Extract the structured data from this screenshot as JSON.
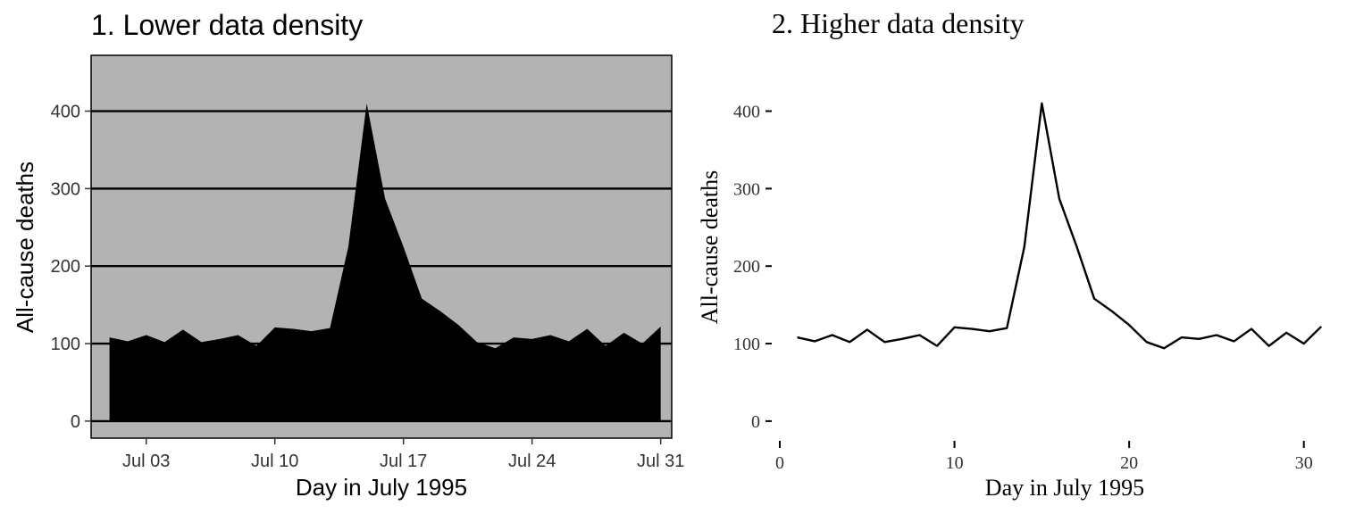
{
  "chart_data": [
    {
      "type": "area",
      "title": "1. Lower data density",
      "xlabel": "Day in July 1995",
      "ylabel": "All-cause deaths",
      "x": [
        1,
        2,
        3,
        4,
        5,
        6,
        7,
        8,
        9,
        10,
        11,
        12,
        13,
        14,
        15,
        16,
        17,
        18,
        19,
        20,
        21,
        22,
        23,
        24,
        25,
        26,
        27,
        28,
        29,
        30,
        31
      ],
      "y": [
        108,
        103,
        111,
        102,
        118,
        102,
        106,
        111,
        97,
        121,
        119,
        116,
        120,
        225,
        410,
        287,
        225,
        158,
        142,
        124,
        102,
        94,
        108,
        106,
        111,
        103,
        119,
        97,
        114,
        100,
        122
      ],
      "xlim": [
        0,
        31.6
      ],
      "ylim": [
        -22,
        472
      ],
      "x_ticks": [
        3,
        10,
        17,
        24,
        31
      ],
      "x_tick_labels": [
        "Jul 03",
        "Jul 10",
        "Jul 17",
        "Jul 24",
        "Jul 31"
      ],
      "y_ticks": [
        0,
        100,
        200,
        300,
        400
      ],
      "y_tick_labels": [
        "0",
        "100",
        "200",
        "300",
        "400"
      ],
      "grid": "horizontal",
      "panel_color": "#b3b3b3",
      "fill_color": "#000000"
    },
    {
      "type": "line",
      "title": "2. Higher data density",
      "xlabel": "Day in July 1995",
      "ylabel": "All-cause deaths",
      "x": [
        1,
        2,
        3,
        4,
        5,
        6,
        7,
        8,
        9,
        10,
        11,
        12,
        13,
        14,
        15,
        16,
        17,
        18,
        19,
        20,
        21,
        22,
        23,
        24,
        25,
        26,
        27,
        28,
        29,
        30,
        31
      ],
      "y": [
        108,
        103,
        111,
        102,
        118,
        102,
        106,
        111,
        97,
        121,
        119,
        116,
        120,
        225,
        410,
        287,
        225,
        158,
        142,
        124,
        102,
        94,
        108,
        106,
        111,
        103,
        119,
        97,
        114,
        100,
        122
      ],
      "xlim": [
        0,
        31.6
      ],
      "ylim": [
        -22,
        472
      ],
      "x_ticks": [
        0,
        10,
        20,
        30
      ],
      "x_tick_labels": [
        "0",
        "10",
        "20",
        "30"
      ],
      "y_ticks": [
        0,
        100,
        200,
        300,
        400
      ],
      "y_tick_labels": [
        "0",
        "100",
        "200",
        "300",
        "400"
      ],
      "grid": "none",
      "line_color": "#000000"
    }
  ]
}
